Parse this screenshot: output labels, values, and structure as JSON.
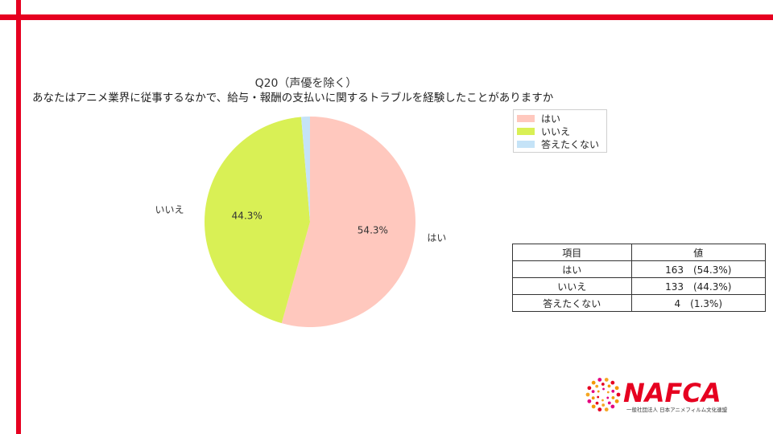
{
  "chart_data": {
    "type": "pie",
    "title": "Q20（声優を除く）",
    "subtitle": "あなたはアニメ業界に従事するなかで、給与・報酬の支払いに関するトラブルを経験したことがありますか",
    "slices": [
      {
        "label": "はい",
        "value": 163,
        "percent": 54.3,
        "percent_label": "54.3%",
        "color": "#ffc8be"
      },
      {
        "label": "いいえ",
        "value": 133,
        "percent": 44.3,
        "percent_label": "44.3%",
        "color": "#d9f055"
      },
      {
        "label": "答えたくない",
        "value": 4,
        "percent": 1.3,
        "percent_label": "",
        "color": "#c5e3f7"
      }
    ],
    "legend_position": "top-right"
  },
  "table": {
    "headers": [
      "項目",
      "値"
    ],
    "rows": [
      {
        "item": "はい",
        "value": "163　(54.3%)"
      },
      {
        "item": "いいえ",
        "value": "133　(44.3%)"
      },
      {
        "item": "答えたくない",
        "value": "4　(1.3%)"
      }
    ]
  },
  "logo": {
    "name": "NAFCA",
    "subtitle": "一般社団法人 日本アニメフィルム文化連盟",
    "color": "#e60020"
  }
}
